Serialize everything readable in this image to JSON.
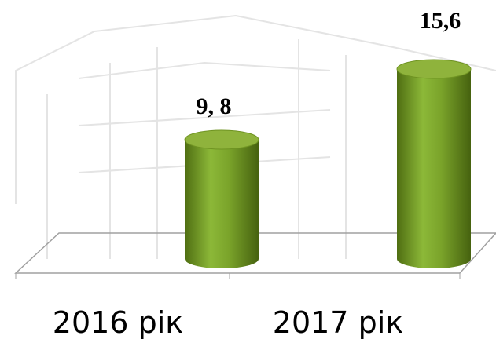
{
  "chart_data": {
    "type": "bar",
    "categories": [
      "2016 рік",
      "2017 рік"
    ],
    "values": [
      9.8,
      15.6
    ],
    "value_labels": [
      "9, 8",
      "15,6"
    ],
    "color": "#7aa32a"
  }
}
